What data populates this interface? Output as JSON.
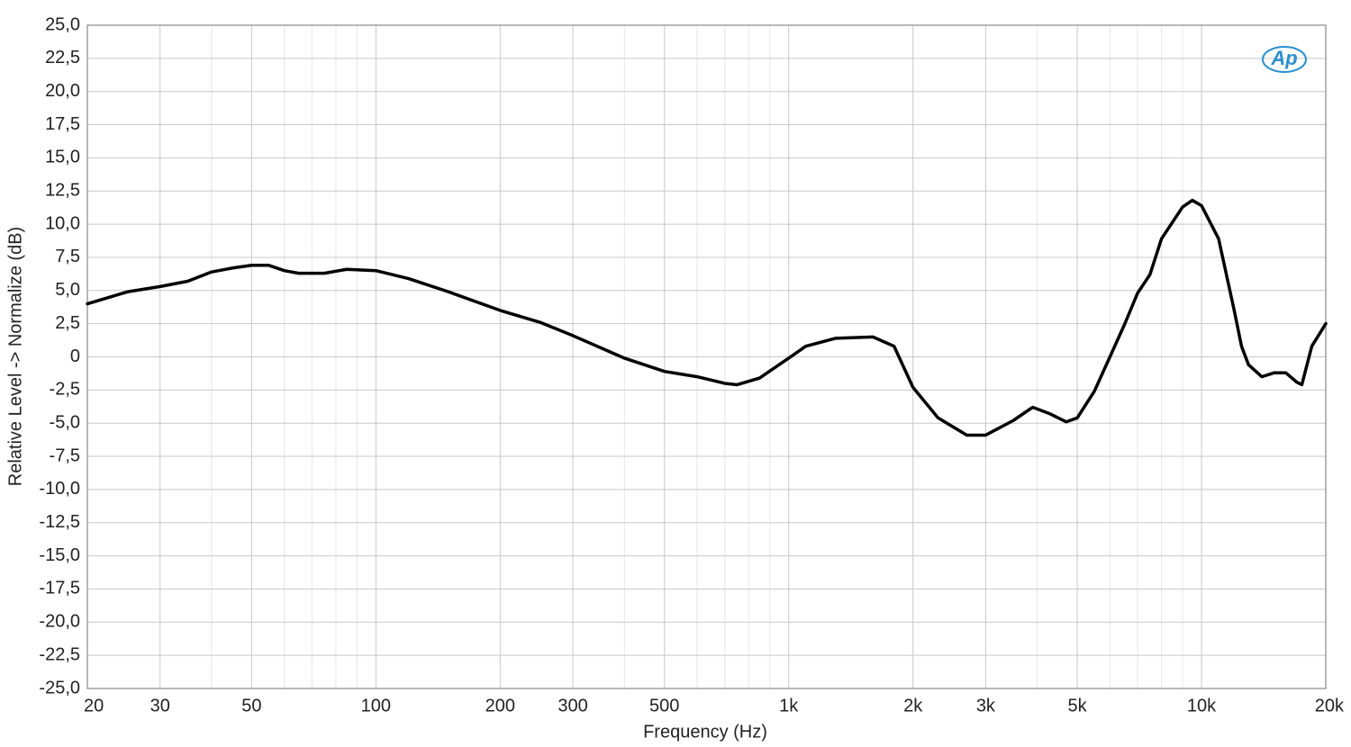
{
  "chart_data": {
    "type": "line",
    "x_label": "Frequency (Hz)",
    "y_label": "Relative Level -> Normalize (dB)",
    "logo": "Ap",
    "x_log": true,
    "grid": true,
    "color": "#000000",
    "xlim": [
      20,
      20000
    ],
    "ylim": [
      -25,
      25
    ],
    "xticks": [
      20,
      30,
      50,
      100,
      200,
      300,
      500,
      {
        "value": 1000,
        "label": "1k"
      },
      {
        "value": 2000,
        "label": "2k"
      },
      {
        "value": 3000,
        "label": "3k"
      },
      {
        "value": 5000,
        "label": "5k"
      },
      {
        "value": 10000,
        "label": "10k"
      },
      {
        "value": 20000,
        "label": "20k"
      }
    ],
    "xminor": [
      40,
      60,
      70,
      80,
      90,
      400,
      600,
      700,
      800,
      900,
      4000,
      6000,
      7000,
      8000,
      9000
    ],
    "yticks": [
      {
        "value": 25,
        "label": "25,0"
      },
      {
        "value": 22.5,
        "label": "22,5"
      },
      {
        "value": 20,
        "label": "20,0"
      },
      {
        "value": 17.5,
        "label": "17,5"
      },
      {
        "value": 15,
        "label": "15,0"
      },
      {
        "value": 12.5,
        "label": "12,5"
      },
      {
        "value": 10,
        "label": "10,0"
      },
      {
        "value": 7.5,
        "label": "7,5"
      },
      {
        "value": 5,
        "label": "5,0"
      },
      {
        "value": 2.5,
        "label": "2,5"
      },
      0,
      {
        "value": -2.5,
        "label": "-2,5"
      },
      {
        "value": -5,
        "label": "-5,0"
      },
      {
        "value": -7.5,
        "label": "-7,5"
      },
      {
        "value": -10,
        "label": "-10,0"
      },
      {
        "value": -12.5,
        "label": "-12,5"
      },
      {
        "value": -15,
        "label": "-15,0"
      },
      {
        "value": -17.5,
        "label": "-17,5"
      },
      {
        "value": -20,
        "label": "-20,0"
      },
      {
        "value": -22.5,
        "label": "-22,5"
      },
      {
        "value": -25,
        "label": "-25,0"
      }
    ],
    "x": [
      20,
      25,
      30,
      35,
      40,
      45,
      50,
      55,
      60,
      65,
      75,
      85,
      100,
      120,
      150,
      200,
      250,
      300,
      400,
      500,
      600,
      700,
      750,
      850,
      1000,
      1100,
      1300,
      1600,
      1800,
      2000,
      2300,
      2700,
      3000,
      3500,
      3900,
      4300,
      4700,
      5000,
      5500,
      6000,
      6500,
      7000,
      7500,
      8000,
      9000,
      9500,
      10000,
      11000,
      12000,
      12500,
      13000,
      14000,
      15000,
      16000,
      17000,
      17500,
      18500,
      20000
    ],
    "values": [
      4.0,
      4.9,
      5.3,
      5.7,
      6.4,
      6.7,
      6.9,
      6.9,
      6.5,
      6.3,
      6.3,
      6.6,
      6.5,
      5.9,
      4.9,
      3.5,
      2.6,
      1.6,
      -0.1,
      -1.1,
      -1.5,
      -2.0,
      -2.1,
      -1.6,
      -0.1,
      0.8,
      1.4,
      1.5,
      0.8,
      -2.3,
      -4.6,
      -5.9,
      -5.9,
      -4.8,
      -3.8,
      -4.3,
      -4.9,
      -4.6,
      -2.6,
      0,
      2.4,
      4.8,
      6.2,
      8.9,
      11.3,
      11.8,
      11.4,
      8.9,
      3.5,
      0.8,
      -0.6,
      -1.5,
      -1.2,
      -1.2,
      -1.9,
      -2.1,
      0.8,
      2.5
    ]
  }
}
